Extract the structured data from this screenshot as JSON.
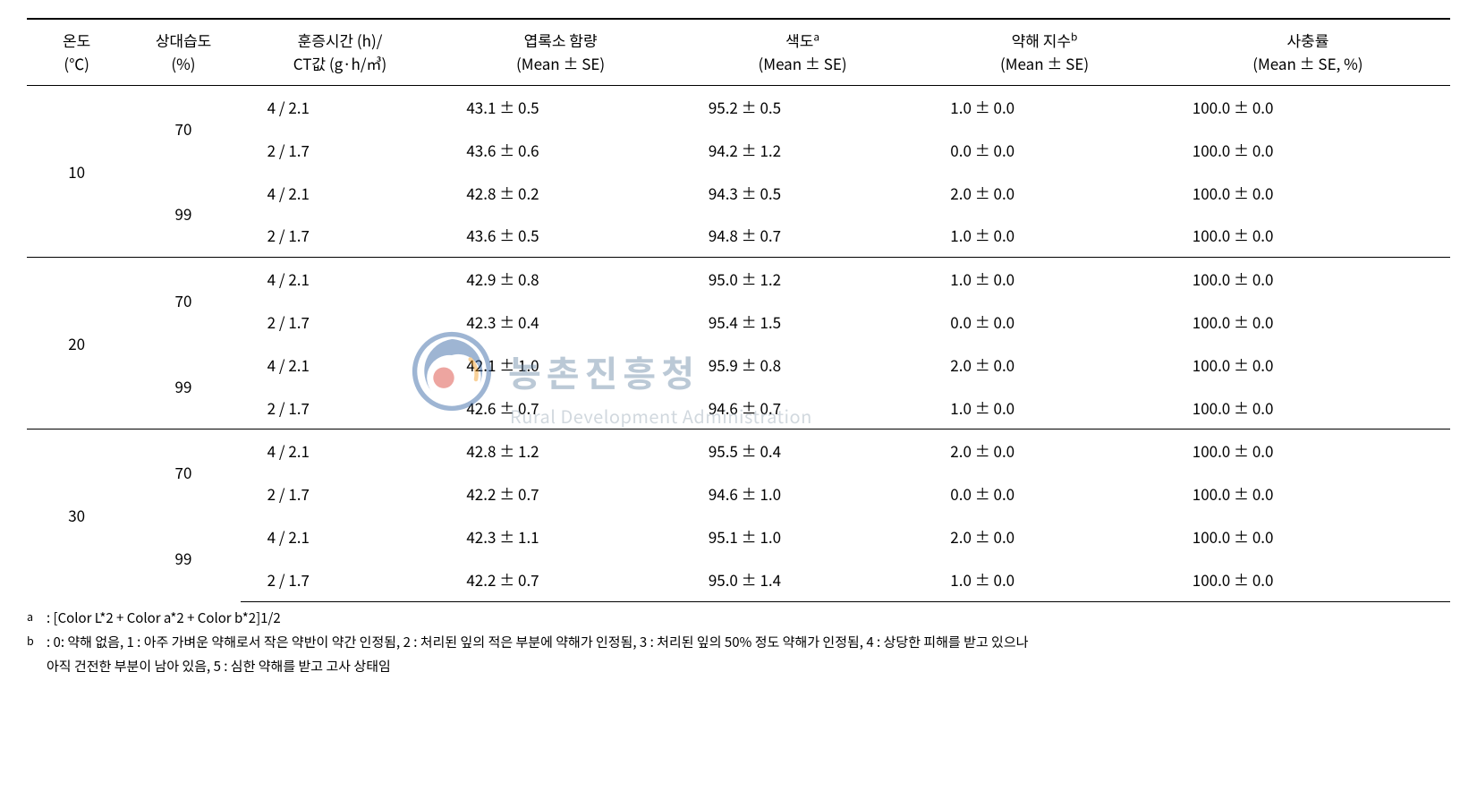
{
  "table": {
    "columns": [
      {
        "line1": "온도",
        "line2": "(℃)",
        "width": "7%"
      },
      {
        "line1": "상대습도",
        "line2": "(%)",
        "width": "8%"
      },
      {
        "line1": "훈증시간 (h)/",
        "line2": "CT값 (g·h/㎥)",
        "width": "14%"
      },
      {
        "line1": "엽록소 함량",
        "line2": "(Mean ± SE)",
        "width": "17%"
      },
      {
        "line1": "색도",
        "sup": "a",
        "line2": "(Mean ± SE)",
        "width": "17%"
      },
      {
        "line1": "약해 지수",
        "sup": "b",
        "line2": "(Mean ± SE)",
        "width": "17%"
      },
      {
        "line1": "사충률",
        "line2": "(Mean ± SE, %)",
        "width": "20%"
      }
    ],
    "groups": [
      {
        "temp": "10",
        "humidities": [
          {
            "rh": "70",
            "rows": [
              {
                "ct": "4 / 2.1",
                "chl": "43.1 ± 0.5",
                "col": "95.2 ± 0.5",
                "phy": "1.0 ± 0.0",
                "mort": "100.0 ± 0.0"
              },
              {
                "ct": "2 / 1.7",
                "chl": "43.6 ± 0.6",
                "col": "94.2 ± 1.2",
                "phy": "0.0 ± 0.0",
                "mort": "100.0 ± 0.0"
              }
            ]
          },
          {
            "rh": "99",
            "rows": [
              {
                "ct": "4 / 2.1",
                "chl": "42.8 ± 0.2",
                "col": "94.3 ± 0.5",
                "phy": "2.0 ± 0.0",
                "mort": "100.0 ± 0.0"
              },
              {
                "ct": "2 / 1.7",
                "chl": "43.6 ± 0.5",
                "col": "94.8 ± 0.7",
                "phy": "1.0 ± 0.0",
                "mort": "100.0 ± 0.0"
              }
            ]
          }
        ]
      },
      {
        "temp": "20",
        "humidities": [
          {
            "rh": "70",
            "rows": [
              {
                "ct": "4 / 2.1",
                "chl": "42.9 ± 0.8",
                "col": "95.0 ± 1.2",
                "phy": "1.0 ± 0.0",
                "mort": "100.0 ± 0.0"
              },
              {
                "ct": "2 / 1.7",
                "chl": "42.3 ± 0.4",
                "col": "95.4 ± 1.5",
                "phy": "0.0 ± 0.0",
                "mort": "100.0 ± 0.0"
              }
            ]
          },
          {
            "rh": "99",
            "rows": [
              {
                "ct": "4 / 2.1",
                "chl": "42.1 ± 1.0",
                "col": "95.9 ± 0.8",
                "phy": "2.0 ± 0.0",
                "mort": "100.0 ± 0.0"
              },
              {
                "ct": "2 / 1.7",
                "chl": "42.6 ± 0.7",
                "col": "94.6 ± 0.7",
                "phy": "1.0 ± 0.0",
                "mort": "100.0 ± 0.0"
              }
            ]
          }
        ]
      },
      {
        "temp": "30",
        "humidities": [
          {
            "rh": "70",
            "rows": [
              {
                "ct": "4 / 2.1",
                "chl": "42.8 ± 1.2",
                "col": "95.5 ± 0.4",
                "phy": "2.0 ± 0.0",
                "mort": "100.0 ± 0.0"
              },
              {
                "ct": "2 / 1.7",
                "chl": "42.2 ± 0.7",
                "col": "94.6 ± 1.0",
                "phy": "0.0 ± 0.0",
                "mort": "100.0 ± 0.0"
              }
            ]
          },
          {
            "rh": "99",
            "rows": [
              {
                "ct": "4 / 2.1",
                "chl": "42.3 ± 1.1",
                "col": "95.1 ± 1.0",
                "phy": "2.0 ± 0.0",
                "mort": "100.0 ± 0.0"
              },
              {
                "ct": "2 / 1.7",
                "chl": "42.2 ± 0.7",
                "col": "95.0 ± 1.4",
                "phy": "1.0 ± 0.0",
                "mort": "100.0 ± 0.0"
              }
            ]
          }
        ]
      }
    ]
  },
  "footnotes": {
    "a_mark": "a",
    "a_text": ": [Color L*2 + Color a*2 + Color b*2]1/2",
    "b_mark": "b",
    "b_text1": ": 0: 약해 없음, 1 : 아주 가벼운 약해로서 작은 약반이 약간 인정됨, 2 : 처리된 잎의 적은 부분에 약해가 인정됨, 3 : 처리된 잎의 50% 정도 약해가 인정됨, 4 : 상당한 피해를 받고 있으나",
    "b_text2": "아직 건전한 부분이 남아 있음, 5 : 심한 약해를 받고 고사 상태임"
  },
  "watermark": {
    "kr": "농촌진흥청",
    "en": "Rural Development Administration",
    "logo_colors": {
      "blue": "#2a5d9f",
      "red": "#d83a2f",
      "orange": "#f39a1e"
    }
  }
}
